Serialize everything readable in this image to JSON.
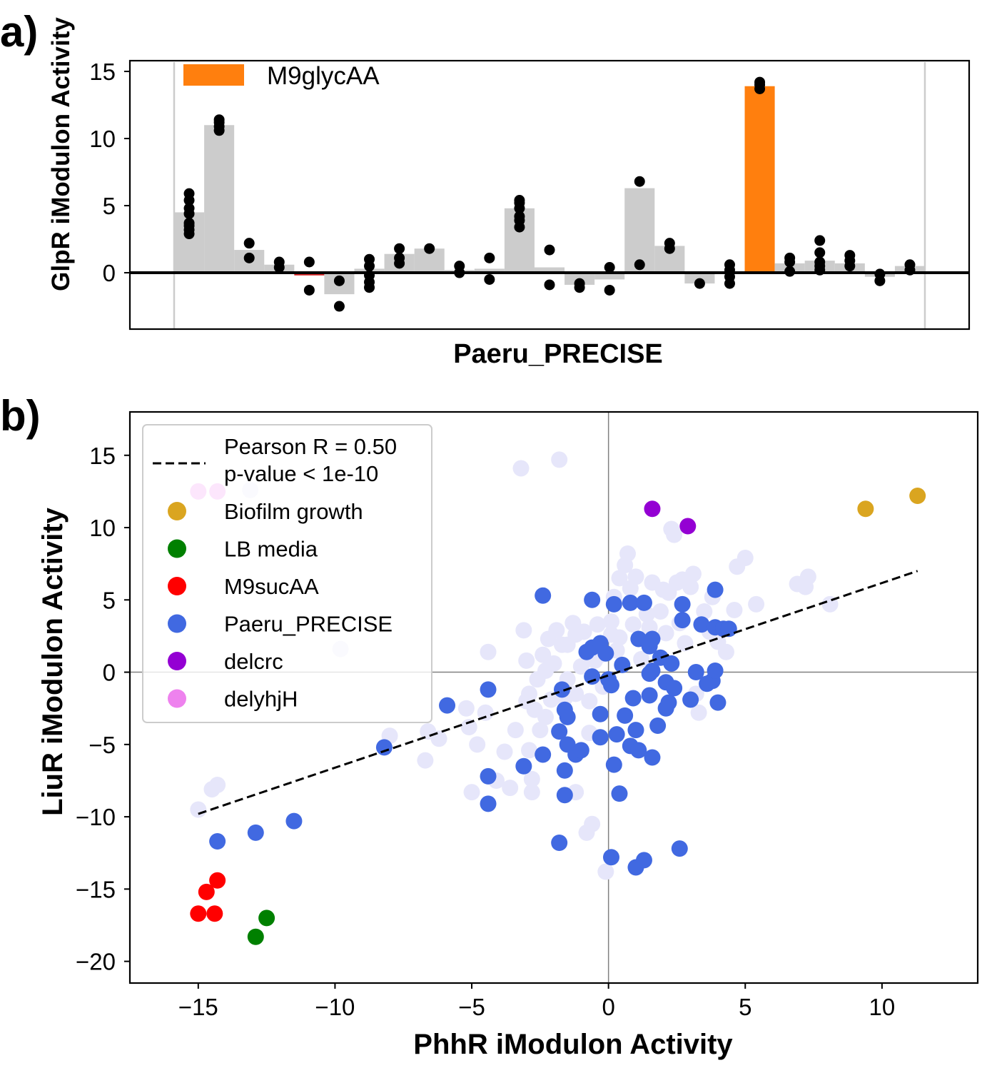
{
  "chart_data": [
    {
      "panel_label": "a)",
      "type": "bar",
      "xlabel": "Paeru_PRECISE",
      "ylabel": "GlpR iModulon Activity",
      "ylim": [
        -4.2,
        15.8
      ],
      "yticks": [
        0,
        5,
        10,
        15
      ],
      "grid": false,
      "highlight_color": "#ff7f0e",
      "base_color": "#cccccc",
      "legend": {
        "placement": "top-left",
        "entries": [
          {
            "label": "M9glycAA",
            "color": "#ff7f0e"
          }
        ]
      },
      "bars": [
        {
          "value": 4.5,
          "points": [
            2.9,
            3.2,
            3.5,
            3.7,
            4.4,
            4.8,
            5.4,
            5.9
          ]
        },
        {
          "value": 11.0,
          "points": [
            10.6,
            10.9,
            11.2,
            11.4
          ]
        },
        {
          "value": 1.7,
          "points": [
            1.1,
            2.2
          ]
        },
        {
          "value": 0.6,
          "points": [
            0.4,
            0.8
          ]
        },
        {
          "value": -0.2,
          "points": [
            -1.3,
            0.8
          ],
          "color": "#d62728"
        },
        {
          "value": -1.6,
          "points": [
            -2.5,
            -0.6
          ]
        },
        {
          "value": 0.3,
          "points": [
            -1.1,
            -0.7,
            -0.2,
            0.5,
            1.0
          ]
        },
        {
          "value": 1.4,
          "points": [
            0.7,
            1.1,
            1.8
          ]
        },
        {
          "value": 1.8,
          "points": [
            1.8
          ]
        },
        {
          "value": 0.2,
          "points": [
            0.0,
            0.5
          ]
        },
        {
          "value": 0.3,
          "points": [
            -0.5,
            1.1
          ]
        },
        {
          "value": 4.8,
          "points": [
            3.4,
            3.9,
            4.2,
            4.8,
            5.2,
            5.4
          ]
        },
        {
          "value": 0.4,
          "points": [
            -0.9,
            1.7
          ]
        },
        {
          "value": -0.9,
          "points": [
            -1.1,
            -0.8
          ]
        },
        {
          "value": -0.5,
          "points": [
            -1.3,
            0.4
          ]
        },
        {
          "value": 6.3,
          "points": [
            0.6,
            6.8
          ]
        },
        {
          "value": 2.0,
          "points": [
            1.8,
            2.2
          ]
        },
        {
          "value": -0.8,
          "points": [
            -0.8
          ]
        },
        {
          "value": 0.1,
          "points": [
            -0.8,
            -0.3,
            0.2,
            0.6
          ]
        },
        {
          "value": 13.9,
          "points": [
            13.7,
            14.0,
            14.2
          ],
          "highlight": true
        },
        {
          "value": 0.7,
          "points": [
            0.1,
            0.8,
            1.1
          ]
        },
        {
          "value": 0.9,
          "points": [
            0.2,
            0.5,
            0.8,
            1.5,
            2.4
          ]
        },
        {
          "value": 0.7,
          "points": [
            0.5,
            0.9,
            1.3
          ]
        },
        {
          "value": -0.3,
          "points": [
            -0.6,
            -0.1
          ]
        },
        {
          "value": 0.5,
          "points": [
            0.2,
            0.6
          ]
        }
      ]
    },
    {
      "panel_label": "b)",
      "type": "scatter",
      "xlabel": "PhhR iModulon Activity",
      "ylabel": "LiuR iModulon Activity",
      "xlim": [
        -17.5,
        13.5
      ],
      "ylim": [
        -21.5,
        18
      ],
      "xticks": [
        -15,
        -10,
        -5,
        0,
        5,
        10
      ],
      "yticks": [
        -20,
        -15,
        -10,
        -5,
        0,
        5,
        10,
        15
      ],
      "grid": false,
      "zero_lines": true,
      "legend": {
        "placement": "top-left"
      },
      "fit_line": {
        "label": "Pearson R = 0.50",
        "label2": "p-value < 1e-10",
        "x": [
          -15,
          11.3
        ],
        "y": [
          -9.8,
          7.0
        ],
        "style": "dashed",
        "color": "#000000"
      },
      "series": [
        {
          "name": "Biofilm growth",
          "color": "#daa520",
          "points": [
            [
              9.4,
              11.3
            ],
            [
              11.3,
              12.2
            ]
          ]
        },
        {
          "name": "LB media",
          "color": "#008000",
          "points": [
            [
              -12.5,
              -17.0
            ],
            [
              -12.9,
              -18.3
            ]
          ]
        },
        {
          "name": "M9sucAA",
          "color": "#ff0000",
          "points": [
            [
              -14.3,
              -14.4
            ],
            [
              -14.7,
              -15.2
            ],
            [
              -15.0,
              -16.7
            ],
            [
              -14.4,
              -16.7
            ]
          ]
        },
        {
          "name": "Paeru_PRECISE",
          "color": "#4169e1",
          "points": [
            [
              -14.3,
              -11.7
            ],
            [
              -12.9,
              -11.1
            ],
            [
              -11.5,
              -10.3
            ],
            [
              -8.2,
              -5.2
            ],
            [
              -5.9,
              -2.3
            ],
            [
              -4.4,
              -1.2
            ],
            [
              -4.4,
              -7.2
            ],
            [
              -4.4,
              -9.1
            ],
            [
              -3.1,
              -6.5
            ],
            [
              -2.4,
              5.3
            ],
            [
              -2.4,
              -5.7
            ],
            [
              -1.8,
              -11.8
            ],
            [
              -1.8,
              -4.1
            ],
            [
              -1.7,
              -1.2
            ],
            [
              -1.6,
              -2.6
            ],
            [
              -1.6,
              -8.5
            ],
            [
              -1.6,
              -6.8
            ],
            [
              -1.5,
              -5.0
            ],
            [
              -1.5,
              -3.1
            ],
            [
              -1.2,
              -5.7
            ],
            [
              -1.0,
              -5.4
            ],
            [
              -0.8,
              1.4
            ],
            [
              -0.6,
              1.7
            ],
            [
              -0.6,
              5.0
            ],
            [
              -0.6,
              -0.3
            ],
            [
              -0.3,
              2.0
            ],
            [
              -0.3,
              -2.9
            ],
            [
              -0.3,
              -4.5
            ],
            [
              -0.1,
              1.3
            ],
            [
              0.0,
              -0.5
            ],
            [
              0.1,
              -0.9
            ],
            [
              0.1,
              -12.8
            ],
            [
              0.2,
              4.7
            ],
            [
              0.2,
              -6.4
            ],
            [
              0.3,
              -4.3
            ],
            [
              0.4,
              -8.4
            ],
            [
              0.5,
              0.5
            ],
            [
              0.6,
              -3.0
            ],
            [
              0.8,
              4.8
            ],
            [
              0.8,
              -5.1
            ],
            [
              0.9,
              -1.8
            ],
            [
              1.0,
              -4.0
            ],
            [
              1.0,
              -13.5
            ],
            [
              1.1,
              2.3
            ],
            [
              1.1,
              -5.4
            ],
            [
              1.3,
              4.8
            ],
            [
              1.3,
              -13.0
            ],
            [
              1.5,
              1.8
            ],
            [
              1.5,
              -0.1
            ],
            [
              1.5,
              -1.6
            ],
            [
              1.6,
              0.1
            ],
            [
              1.6,
              2.3
            ],
            [
              1.6,
              -5.9
            ],
            [
              1.8,
              -3.7
            ],
            [
              1.9,
              1.0
            ],
            [
              2.1,
              -0.7
            ],
            [
              2.1,
              -2.5
            ],
            [
              2.2,
              -2.1
            ],
            [
              2.3,
              0.6
            ],
            [
              2.4,
              -1.1
            ],
            [
              2.6,
              -12.2
            ],
            [
              2.7,
              3.6
            ],
            [
              2.7,
              4.7
            ],
            [
              3.0,
              -1.9
            ],
            [
              3.2,
              0.0
            ],
            [
              3.4,
              3.3
            ],
            [
              3.6,
              -0.8
            ],
            [
              3.8,
              -0.6
            ],
            [
              3.9,
              0.1
            ],
            [
              3.9,
              3.1
            ],
            [
              3.9,
              5.7
            ],
            [
              4.0,
              -2.1
            ],
            [
              4.2,
              3.0
            ],
            [
              4.4,
              3.0
            ]
          ]
        },
        {
          "name": "delcrc",
          "color": "#9400d3",
          "points": [
            [
              1.6,
              11.3
            ],
            [
              2.9,
              10.1
            ]
          ]
        },
        {
          "name": "delyhjH",
          "color": "#ee82ee",
          "points": [
            [
              -15.0,
              12.5
            ],
            [
              -14.3,
              12.5
            ]
          ]
        },
        {
          "color": "#e6e6fa",
          "points": [
            [
              -15.0,
              -9.5
            ],
            [
              -14.5,
              -8.1
            ],
            [
              -14.3,
              -7.8
            ],
            [
              -13.1,
              12.6
            ],
            [
              -9.8,
              1.6
            ],
            [
              -8.0,
              -4.4
            ],
            [
              -6.7,
              -6.1
            ],
            [
              -6.6,
              -4.1
            ],
            [
              -6.2,
              -4.6
            ],
            [
              -5.2,
              -2.5
            ],
            [
              -5.1,
              -3.8
            ],
            [
              -5.0,
              -8.3
            ],
            [
              -4.8,
              -5.0
            ],
            [
              -4.5,
              -2.8
            ],
            [
              -4.4,
              1.4
            ],
            [
              -4.1,
              -7.5
            ],
            [
              -3.8,
              -5.5
            ],
            [
              -3.6,
              -8.0
            ],
            [
              -3.4,
              -4.0
            ],
            [
              -3.2,
              14.1
            ],
            [
              -3.1,
              2.9
            ],
            [
              -3.0,
              -2.0
            ],
            [
              -3.0,
              0.8
            ],
            [
              -2.9,
              -1.5
            ],
            [
              -2.9,
              -5.4
            ],
            [
              -2.8,
              -7.4
            ],
            [
              -2.8,
              -8.3
            ],
            [
              -2.7,
              -2.6
            ],
            [
              -2.6,
              -0.5
            ],
            [
              -2.5,
              -4.0
            ],
            [
              -2.4,
              1.2
            ],
            [
              -2.3,
              0.1
            ],
            [
              -2.3,
              -3.1
            ],
            [
              -2.2,
              2.3
            ],
            [
              -2.1,
              -1.9
            ],
            [
              -2.0,
              0.6
            ],
            [
              -1.9,
              2.9
            ],
            [
              -1.8,
              14.7
            ],
            [
              -1.7,
              1.9
            ],
            [
              -1.6,
              -1.8
            ],
            [
              -1.5,
              -0.5
            ],
            [
              -1.5,
              1.9
            ],
            [
              -1.3,
              3.4
            ],
            [
              -1.2,
              2.6
            ],
            [
              -1.2,
              -1.5
            ],
            [
              -1.2,
              -8.3
            ],
            [
              -1.0,
              0.4
            ],
            [
              -0.9,
              2.8
            ],
            [
              -0.8,
              -11.1
            ],
            [
              -0.7,
              -2.0
            ],
            [
              -0.7,
              -4.2
            ],
            [
              -0.6,
              -10.5
            ],
            [
              -0.5,
              0.8
            ],
            [
              -0.4,
              3.3
            ],
            [
              -0.3,
              1.2
            ],
            [
              -0.2,
              -1.0
            ],
            [
              -0.1,
              -13.8
            ],
            [
              0.1,
              2.6
            ],
            [
              0.1,
              3.5
            ],
            [
              0.2,
              5.2
            ],
            [
              0.3,
              1.5
            ],
            [
              0.4,
              6.5
            ],
            [
              0.4,
              2.4
            ],
            [
              0.6,
              7.4
            ],
            [
              0.7,
              8.2
            ],
            [
              0.8,
              5.8
            ],
            [
              0.9,
              3.3
            ],
            [
              1.0,
              6.6
            ],
            [
              1.2,
              0.9
            ],
            [
              1.4,
              4.0
            ],
            [
              1.5,
              3.1
            ],
            [
              1.6,
              6.2
            ],
            [
              1.9,
              4.2
            ],
            [
              2.0,
              5.7
            ],
            [
              2.1,
              2.7
            ],
            [
              2.2,
              5.5
            ],
            [
              2.3,
              9.9
            ],
            [
              2.4,
              9.5
            ],
            [
              2.5,
              6.2
            ],
            [
              2.6,
              3.4
            ],
            [
              2.7,
              6.4
            ],
            [
              2.8,
              2.0
            ],
            [
              3.0,
              5.9
            ],
            [
              3.1,
              6.8
            ],
            [
              3.2,
              -1.5
            ],
            [
              3.3,
              -2.8
            ],
            [
              3.5,
              4.2
            ],
            [
              3.7,
              2.8
            ],
            [
              3.8,
              5.2
            ],
            [
              4.0,
              2.1
            ],
            [
              4.3,
              1.4
            ],
            [
              4.6,
              4.3
            ],
            [
              4.7,
              7.3
            ],
            [
              5.0,
              7.9
            ],
            [
              5.4,
              4.7
            ],
            [
              6.9,
              6.1
            ],
            [
              7.3,
              6.6
            ],
            [
              7.2,
              5.9
            ],
            [
              8.1,
              4.7
            ]
          ]
        }
      ]
    }
  ]
}
